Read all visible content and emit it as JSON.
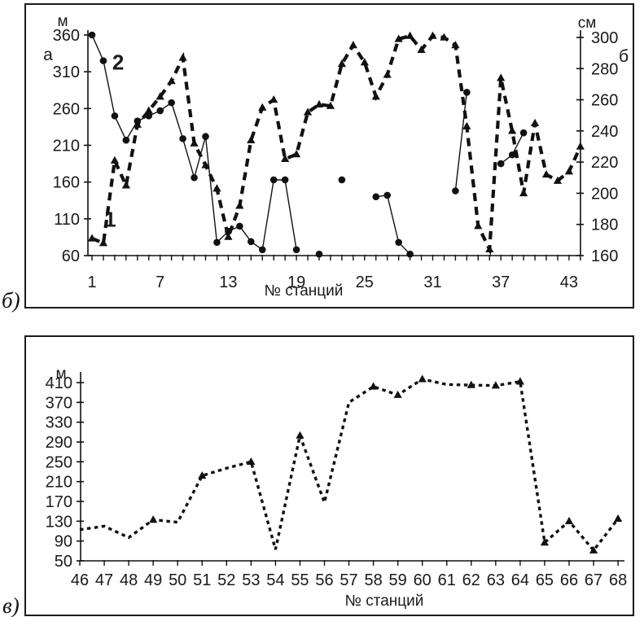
{
  "figure": {
    "panel_count": 2,
    "line_color": "#111111",
    "background": "#ffffff"
  },
  "chart_data": [
    {
      "type": "line",
      "panel_label": "б)",
      "xlabel": "№ станций",
      "x_range": [
        1,
        44
      ],
      "x_label_ticks": [
        1,
        7,
        13,
        19,
        25,
        31,
        37,
        43
      ],
      "grid": false,
      "axes": {
        "left": {
          "unit": "м",
          "corner_label": "а",
          "min": 60,
          "max": 360,
          "ticks": [
            360,
            310,
            260,
            210,
            160,
            110,
            60
          ]
        },
        "right": {
          "unit": "см",
          "corner_label": "б",
          "min": 160,
          "max": 300,
          "ticks": [
            300,
            280,
            260,
            240,
            220,
            200,
            180,
            160
          ]
        }
      },
      "series": [
        {
          "name": "1",
          "axis": "right",
          "style": "bold-dashed",
          "marker": "triangle",
          "segments": [
            [
              [
                1,
                171
              ],
              [
                2,
                168
              ],
              [
                3,
                221
              ],
              [
                4,
                205
              ],
              [
                5,
                244
              ],
              [
                6,
                253
              ],
              [
                7,
                262
              ],
              [
                8,
                272
              ],
              [
                9,
                287
              ],
              [
                10,
                232
              ],
              [
                11,
                218
              ],
              [
                12,
                203
              ],
              [
                13,
                172
              ],
              [
                14,
                192
              ],
              [
                15,
                234
              ],
              [
                16,
                255
              ],
              [
                17,
                260
              ],
              [
                18,
                222
              ],
              [
                19,
                225
              ],
              [
                20,
                252
              ],
              [
                21,
                257
              ],
              [
                22,
                256
              ],
              [
                23,
                283
              ],
              [
                24,
                295
              ],
              [
                25,
                284
              ],
              [
                26,
                262
              ],
              [
                27,
                276
              ],
              [
                28,
                299
              ],
              [
                29,
                301
              ],
              [
                30,
                292
              ],
              [
                31,
                301
              ],
              [
                32,
                300
              ],
              [
                33,
                295
              ],
              [
                34,
                243
              ],
              [
                35,
                179
              ],
              [
                36,
                164
              ],
              [
                37,
                274
              ],
              [
                38,
                240
              ],
              [
                39,
                200
              ],
              [
                40,
                245
              ],
              [
                41,
                212
              ],
              [
                42,
                208
              ],
              [
                43,
                214
              ],
              [
                44,
                230
              ]
            ]
          ]
        },
        {
          "name": "2",
          "axis": "left",
          "style": "thin-solid",
          "marker": "circle",
          "segments": [
            [
              [
                1,
                360
              ],
              [
                2,
                325
              ],
              [
                3,
                250
              ],
              [
                4,
                217
              ],
              [
                5,
                243
              ],
              [
                6,
                250
              ],
              [
                7,
                257
              ],
              [
                8,
                268
              ],
              [
                9,
                219
              ],
              [
                10,
                166
              ],
              [
                11,
                222
              ],
              [
                12,
                78
              ],
              [
                13,
                93
              ],
              [
                14,
                100
              ],
              [
                15,
                79
              ],
              [
                16,
                68
              ],
              [
                17,
                163
              ],
              [
                18,
                163
              ],
              [
                19,
                68
              ]
            ],
            [
              [
                21,
                62
              ]
            ],
            [
              [
                23,
                163
              ]
            ],
            [
              [
                26,
                140
              ],
              [
                27,
                142
              ],
              [
                28,
                78
              ],
              [
                29,
                62
              ]
            ],
            [
              [
                33,
                148
              ],
              [
                34,
                282
              ]
            ],
            [
              [
                37,
                185
              ],
              [
                38,
                197
              ],
              [
                39,
                227
              ]
            ]
          ]
        }
      ],
      "annotations": [
        {
          "text": "2",
          "station": 3.3,
          "value": 323,
          "axis": "left"
        },
        {
          "text": "1",
          "station": 2.6,
          "value": 109,
          "axis": "left"
        }
      ]
    },
    {
      "type": "line",
      "panel_label": "в)",
      "xlabel": "№ станций",
      "x_range": [
        46,
        68
      ],
      "x_label_ticks": [
        46,
        47,
        48,
        49,
        50,
        51,
        52,
        53,
        54,
        55,
        56,
        57,
        58,
        59,
        60,
        61,
        62,
        63,
        64,
        65,
        66,
        67,
        68
      ],
      "grid": false,
      "axes": {
        "left": {
          "unit": "м",
          "min": 50,
          "max": 410,
          "ticks": [
            410,
            370,
            330,
            290,
            250,
            210,
            170,
            130,
            90,
            50
          ]
        }
      },
      "series": [
        {
          "axis": "left",
          "style": "dense-dashed",
          "marker": "triangle",
          "marker_stations": [
            49,
            51,
            53,
            55,
            58,
            59,
            60,
            62,
            63,
            64,
            65,
            66,
            67,
            68
          ],
          "segments": [
            [
              [
                46,
                113
              ],
              [
                47,
                120
              ],
              [
                48,
                97
              ],
              [
                49,
                133
              ],
              [
                50,
                128
              ],
              [
                51,
                222
              ],
              [
                52,
                237
              ],
              [
                53,
                250
              ],
              [
                54,
                73
              ],
              [
                55,
                303
              ],
              [
                56,
                168
              ],
              [
                57,
                370
              ],
              [
                58,
                402
              ],
              [
                59,
                385
              ],
              [
                60,
                417
              ],
              [
                61,
                406
              ],
              [
                62,
                405
              ],
              [
                63,
                404
              ],
              [
                64,
                412
              ],
              [
                65,
                87
              ],
              [
                66,
                130
              ],
              [
                67,
                71
              ],
              [
                68,
                135
              ]
            ]
          ]
        }
      ],
      "annotations": []
    }
  ]
}
